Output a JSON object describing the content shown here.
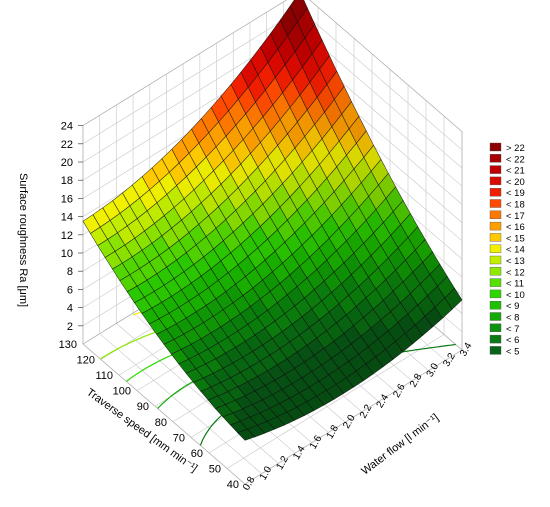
{
  "chart_data": {
    "type": "surface3d",
    "title": "",
    "zlabel": "Surface roughness Ra  [μm]",
    "xlabel": "Water flow  [l min⁻¹]",
    "ylabel": "Traverse speed  [mm min⁻¹]",
    "z_ticks": [
      "2",
      "4",
      "6",
      "8",
      "10",
      "12",
      "14",
      "16",
      "18",
      "20",
      "22",
      "24"
    ],
    "x_ticks": [
      "0.8",
      "1.0",
      "1.2",
      "1.4",
      "1.6",
      "1.8",
      "2.0",
      "2.2",
      "2.4",
      "2.6",
      "2.8",
      "3.0",
      "3.2",
      "3.4"
    ],
    "y_ticks": [
      "40",
      "50",
      "60",
      "70",
      "80",
      "90",
      "100",
      "110",
      "120",
      "130"
    ],
    "xlim": [
      0.8,
      3.4
    ],
    "ylim": [
      40,
      130
    ],
    "zlim": [
      0,
      24
    ],
    "corner_values": [
      {
        "water_flow": 0.8,
        "traverse_speed": 130,
        "ra": 13.5
      },
      {
        "water_flow": 0.8,
        "traverse_speed": 40,
        "ra": 4.8
      },
      {
        "water_flow": 3.4,
        "traverse_speed": 40,
        "ra": 5.5
      },
      {
        "water_flow": 3.4,
        "traverse_speed": 130,
        "ra": 24.0
      }
    ],
    "legend": {
      "position": "right",
      "entries": [
        {
          "label": "> 22",
          "color": "#8b0000"
        },
        {
          "label": "< 22",
          "color": "#a60000"
        },
        {
          "label": "< 21",
          "color": "#c00000"
        },
        {
          "label": "< 20",
          "color": "#da0a00"
        },
        {
          "label": "< 19",
          "color": "#f21e00"
        },
        {
          "label": "< 18",
          "color": "#ff4a00"
        },
        {
          "label": "< 17",
          "color": "#ff7800"
        },
        {
          "label": "< 16",
          "color": "#ffa000"
        },
        {
          "label": "< 15",
          "color": "#ffca00"
        },
        {
          "label": "< 14",
          "color": "#f0f000"
        },
        {
          "label": "< 13",
          "color": "#c4ee00"
        },
        {
          "label": "< 12",
          "color": "#8ee800"
        },
        {
          "label": "< 11",
          "color": "#56e000"
        },
        {
          "label": "< 10",
          "color": "#2ed600"
        },
        {
          "label": "< 9",
          "color": "#1cc200"
        },
        {
          "label": "< 8",
          "color": "#12aa06"
        },
        {
          "label": "< 7",
          "color": "#0c920e"
        },
        {
          "label": "< 6",
          "color": "#0a7a14"
        },
        {
          "label": "< 5",
          "color": "#086418"
        }
      ]
    },
    "grid": true
  }
}
